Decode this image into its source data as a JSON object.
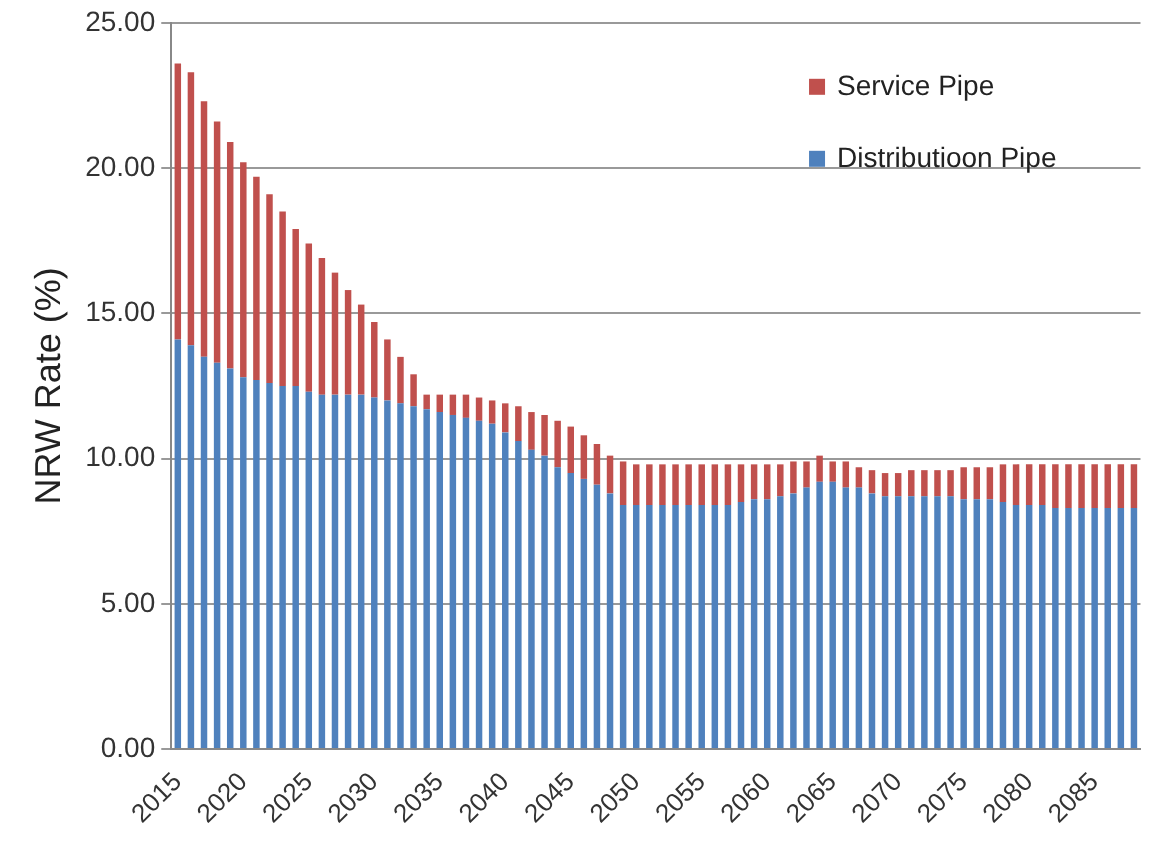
{
  "chart_data": {
    "type": "bar",
    "stacked": true,
    "ylabel": "NRW Rate (%)",
    "categories": [
      "2015",
      null,
      null,
      null,
      null,
      "2020",
      null,
      null,
      null,
      null,
      "2025",
      null,
      null,
      null,
      null,
      "2030",
      null,
      null,
      null,
      null,
      "2035",
      null,
      null,
      null,
      null,
      "2040",
      null,
      null,
      null,
      null,
      "2045",
      null,
      null,
      null,
      null,
      "2050",
      null,
      null,
      null,
      null,
      "2055",
      null,
      null,
      null,
      null,
      "2060",
      null,
      null,
      null,
      null,
      "2065",
      null,
      null,
      null,
      null,
      "2070",
      null,
      null,
      null,
      null,
      "2075",
      null,
      null,
      null,
      null,
      "2080",
      null,
      null,
      null,
      null,
      "2085",
      null,
      null,
      null
    ],
    "series": [
      {
        "name": "Distributioon Pipe",
        "color": "#4f81bd",
        "values": [
          14.1,
          13.9,
          13.5,
          13.3,
          13.1,
          12.8,
          12.7,
          12.6,
          12.5,
          12.5,
          12.3,
          12.2,
          12.2,
          12.2,
          12.2,
          12.1,
          12.0,
          11.9,
          11.8,
          11.7,
          11.6,
          11.5,
          11.4,
          11.3,
          11.2,
          10.9,
          10.6,
          10.3,
          10.1,
          9.7,
          9.5,
          9.3,
          9.1,
          8.8,
          8.4,
          8.4,
          8.4,
          8.4,
          8.4,
          8.4,
          8.4,
          8.4,
          8.4,
          8.5,
          8.6,
          8.6,
          8.7,
          8.8,
          9.0,
          9.2,
          9.2,
          9.0,
          9.0,
          8.8,
          8.7,
          8.7,
          8.7,
          8.7,
          8.7,
          8.7,
          8.6,
          8.6,
          8.6,
          8.5,
          8.4,
          8.4,
          8.4,
          8.3,
          8.3,
          8.3,
          8.3,
          8.3,
          8.3,
          8.3
        ]
      },
      {
        "name": "Service Pipe",
        "color": "#c0504d",
        "values": [
          9.5,
          9.4,
          8.8,
          8.3,
          7.8,
          7.4,
          7.0,
          6.5,
          6.0,
          5.4,
          5.1,
          4.7,
          4.2,
          3.6,
          3.1,
          2.6,
          2.1,
          1.6,
          1.1,
          0.5,
          0.6,
          0.7,
          0.8,
          0.8,
          0.8,
          1.0,
          1.2,
          1.3,
          1.4,
          1.6,
          1.6,
          1.5,
          1.4,
          1.3,
          1.5,
          1.4,
          1.4,
          1.4,
          1.4,
          1.4,
          1.4,
          1.4,
          1.4,
          1.3,
          1.2,
          1.2,
          1.1,
          1.1,
          0.9,
          0.9,
          0.7,
          0.9,
          0.7,
          0.8,
          0.8,
          0.8,
          0.9,
          0.9,
          0.9,
          0.9,
          1.1,
          1.1,
          1.1,
          1.3,
          1.4,
          1.4,
          1.4,
          1.5,
          1.5,
          1.5,
          1.5,
          1.5,
          1.5,
          1.5
        ]
      }
    ],
    "ylim": [
      0,
      25
    ],
    "yticks": [
      {
        "value": 0,
        "label": "0.00"
      },
      {
        "value": 5,
        "label": "5.00"
      },
      {
        "value": 10,
        "label": "10.00"
      },
      {
        "value": 15,
        "label": "15.00"
      },
      {
        "value": 20,
        "label": "20.00"
      },
      {
        "value": 25,
        "label": "25.00"
      }
    ],
    "grid": "y",
    "legend": "top right"
  }
}
